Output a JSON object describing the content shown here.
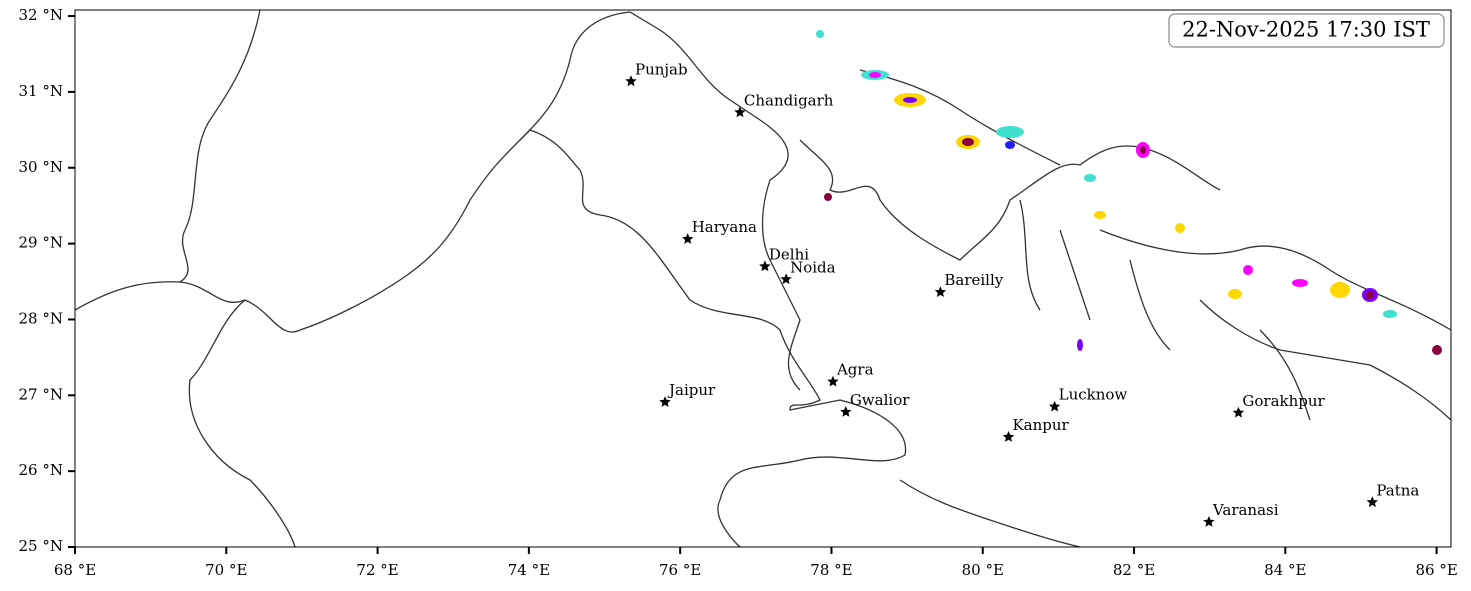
{
  "chart_data": {
    "type": "map",
    "title": "22-Nov-2025 17:30 IST",
    "xlim": [
      68,
      86.19
    ],
    "ylim": [
      25,
      32.08
    ],
    "xticks": [
      {
        "value": 68,
        "label": "68 °E"
      },
      {
        "value": 70,
        "label": "70 °E"
      },
      {
        "value": 72,
        "label": "72 °E"
      },
      {
        "value": 74,
        "label": "74 °E"
      },
      {
        "value": 76,
        "label": "76 °E"
      },
      {
        "value": 78,
        "label": "78 °E"
      },
      {
        "value": 80,
        "label": "80 °E"
      },
      {
        "value": 82,
        "label": "82 °E"
      },
      {
        "value": 84,
        "label": "84 °E"
      },
      {
        "value": 86,
        "label": "86 °E"
      }
    ],
    "yticks": [
      {
        "value": 25,
        "label": "25 °N"
      },
      {
        "value": 26,
        "label": "26 °N"
      },
      {
        "value": 27,
        "label": "27 °N"
      },
      {
        "value": 28,
        "label": "28 °N"
      },
      {
        "value": 29,
        "label": "29 °N"
      },
      {
        "value": 30,
        "label": "30 °N"
      },
      {
        "value": 31,
        "label": "31 °N"
      },
      {
        "value": 32,
        "label": "32 °N"
      }
    ],
    "cities": [
      {
        "name": "Punjab",
        "lon": 75.35,
        "lat": 31.14
      },
      {
        "name": "Chandigarh",
        "lon": 76.79,
        "lat": 30.73
      },
      {
        "name": "Haryana",
        "lon": 76.1,
        "lat": 29.06
      },
      {
        "name": "Delhi",
        "lon": 77.12,
        "lat": 28.7
      },
      {
        "name": "Noida",
        "lon": 77.4,
        "lat": 28.53
      },
      {
        "name": "Bareilly",
        "lon": 79.44,
        "lat": 28.36
      },
      {
        "name": "Agra",
        "lon": 78.02,
        "lat": 27.18
      },
      {
        "name": "Jaipur",
        "lon": 75.8,
        "lat": 26.91
      },
      {
        "name": "Gwalior",
        "lon": 78.19,
        "lat": 26.78
      },
      {
        "name": "Lucknow",
        "lon": 80.95,
        "lat": 26.85
      },
      {
        "name": "Kanpur",
        "lon": 80.34,
        "lat": 26.45
      },
      {
        "name": "Gorakhpur",
        "lon": 83.38,
        "lat": 26.77
      },
      {
        "name": "Varanasi",
        "lon": 82.99,
        "lat": 25.33
      },
      {
        "name": "Patna",
        "lon": 85.15,
        "lat": 25.59
      }
    ]
  }
}
